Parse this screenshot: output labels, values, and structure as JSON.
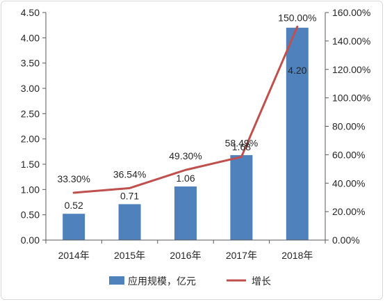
{
  "chart_data": {
    "type": "bar+line",
    "categories": [
      "2014年",
      "2015年",
      "2016年",
      "2017年",
      "2018年"
    ],
    "series": [
      {
        "name": "应用规模，亿元",
        "type": "bar",
        "axis": "left",
        "color": "#4f81bd",
        "values": [
          0.52,
          0.71,
          1.06,
          1.68,
          4.2
        ],
        "labels": [
          "0.52",
          "0.71",
          "1.06",
          "1.68",
          "4.20"
        ]
      },
      {
        "name": "增长",
        "type": "line",
        "axis": "right",
        "color": "#c0504d",
        "values": [
          33.3,
          36.54,
          49.3,
          58.49,
          150.0
        ],
        "labels": [
          "33.30%",
          "36.54%",
          "49.30%",
          "58.49%",
          "150.00%"
        ]
      }
    ],
    "left_axis": {
      "ylim": [
        0,
        4.5
      ],
      "ticks": [
        "0.00",
        "0.50",
        "1.00",
        "1.50",
        "2.00",
        "2.50",
        "3.00",
        "3.50",
        "4.00",
        "4.50"
      ]
    },
    "right_axis": {
      "ylim": [
        0,
        160
      ],
      "ticks": [
        "0.00%",
        "20.00%",
        "40.00%",
        "60.00%",
        "80.00%",
        "100.00%",
        "120.00%",
        "140.00%",
        "160.00%"
      ]
    },
    "grid": false,
    "legend": "bottom"
  }
}
